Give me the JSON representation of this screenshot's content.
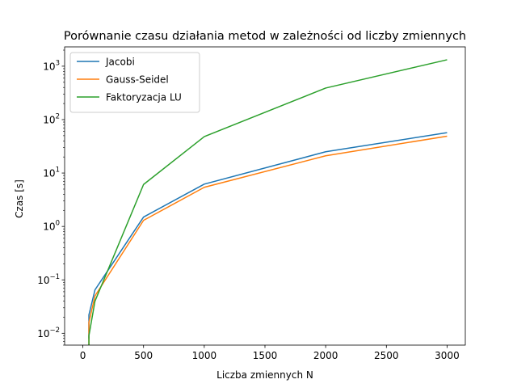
{
  "chart_data": {
    "type": "line",
    "title": "Porównanie czasu działania metod w zależności od liczby zmiennych",
    "xlabel": "Liczba zmiennych N",
    "ylabel": "Czas [s]",
    "yscale": "log",
    "xlim": [
      -150,
      3150
    ],
    "ylim": [
      0.006,
      2300
    ],
    "xticks": [
      0,
      500,
      1000,
      1500,
      2000,
      2500,
      3000
    ],
    "xtick_labels": [
      "0",
      "500",
      "1000",
      "1500",
      "2000",
      "2500",
      "3000"
    ],
    "yticks": [
      0.01,
      0.1,
      1,
      10,
      100,
      1000
    ],
    "ytick_labels": [
      {
        "base": "10",
        "exp": "−2"
      },
      {
        "base": "10",
        "exp": "−1"
      },
      {
        "base": "10",
        "exp": "0"
      },
      {
        "base": "10",
        "exp": "1"
      },
      {
        "base": "10",
        "exp": "2"
      },
      {
        "base": "10",
        "exp": "3"
      }
    ],
    "grid": false,
    "legend": "top-left",
    "x": [
      50,
      100,
      500,
      1000,
      2000,
      3000
    ],
    "series": [
      {
        "name": "Jacobi",
        "color": "#1f77b4",
        "x": [
          50,
          50,
          100,
          500,
          1000,
          2000,
          3000
        ],
        "values": [
          0.008,
          0.022,
          0.065,
          1.5,
          6.2,
          25,
          57
        ]
      },
      {
        "name": "Gauss-Seidel",
        "color": "#ff7f0e",
        "x": [
          50,
          50,
          100,
          500,
          1000,
          2000,
          3000
        ],
        "values": [
          0.006,
          0.016,
          0.05,
          1.3,
          5.4,
          21,
          49
        ]
      },
      {
        "name": "Faktoryzacja LU",
        "color": "#2ca02c",
        "x": [
          50,
          50,
          100,
          500,
          1000,
          2000,
          3000
        ],
        "values": [
          0.006,
          0.009,
          0.04,
          6.1,
          48,
          390,
          1320
        ]
      }
    ]
  }
}
